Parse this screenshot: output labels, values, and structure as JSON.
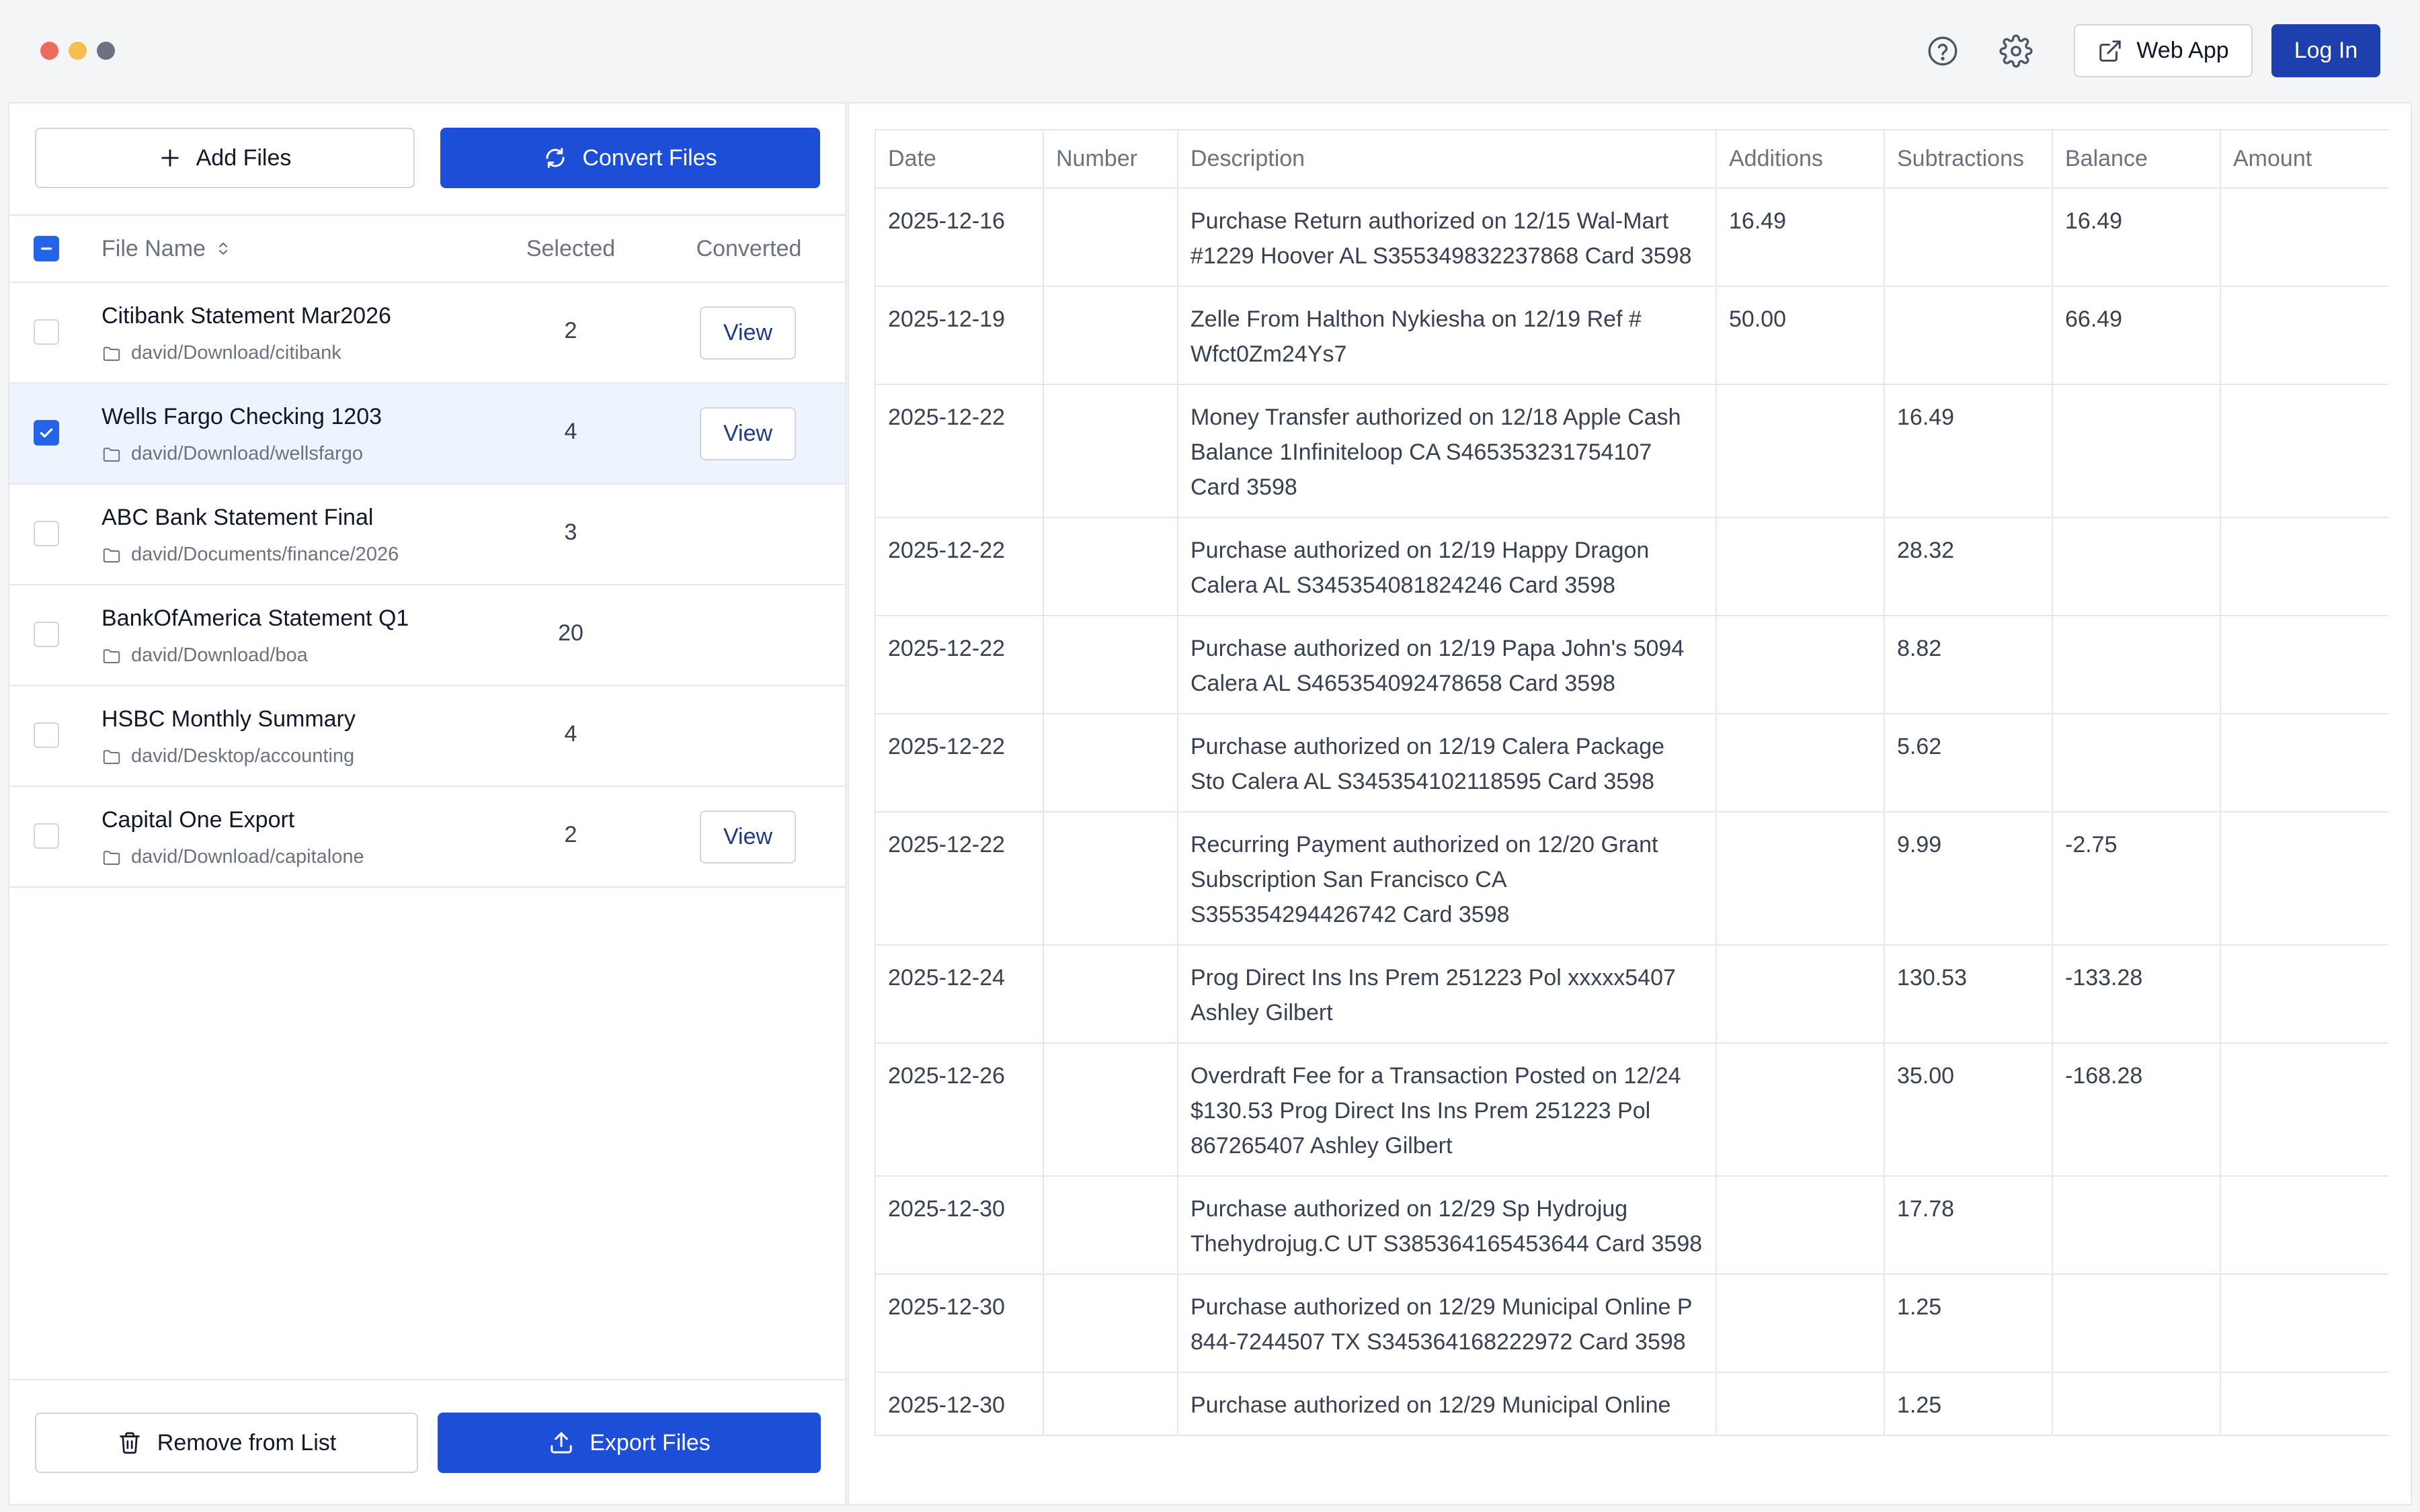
{
  "titlebar": {
    "web_app_label": "Web App",
    "login_label": "Log In"
  },
  "left": {
    "add_files_label": "Add Files",
    "convert_files_label": "Convert Files",
    "header": {
      "file_name": "File Name",
      "selected": "Selected",
      "converted": "Converted"
    },
    "files": [
      {
        "name": "Citibank Statement Mar2026",
        "path": "david/Download/citibank",
        "selected_count": "2",
        "checked": false,
        "view_label": "View"
      },
      {
        "name": "Wells Fargo Checking 1203",
        "path": "david/Download/wellsfargo",
        "selected_count": "4",
        "checked": true,
        "view_label": "View"
      },
      {
        "name": "ABC Bank Statement Final",
        "path": "david/Documents/finance/2026",
        "selected_count": "3",
        "checked": false,
        "view_label": ""
      },
      {
        "name": "BankOfAmerica Statement Q1",
        "path": "david/Download/boa",
        "selected_count": "20",
        "checked": false,
        "view_label": ""
      },
      {
        "name": "HSBC Monthly Summary",
        "path": "david/Desktop/accounting",
        "selected_count": "4",
        "checked": false,
        "view_label": ""
      },
      {
        "name": "Capital One Export",
        "path": "david/Download/capitalone",
        "selected_count": "2",
        "checked": false,
        "view_label": "View"
      }
    ],
    "remove_label": "Remove from List",
    "export_label": "Export Files"
  },
  "table": {
    "columns": [
      "Date",
      "Number",
      "Description",
      "Additions",
      "Subtractions",
      "Balance",
      "Amount"
    ],
    "rows": [
      {
        "date": "2025-12-16",
        "number": "",
        "description": "Purchase Return authorized on 12/15 Wal-Mart #1229 Hoover AL S355349832237868 Card 3598",
        "additions": "16.49",
        "subtractions": "",
        "balance": "16.49",
        "amount": ""
      },
      {
        "date": "2025-12-19",
        "number": "",
        "description": "Zelle From Halthon Nykiesha on 12/19 Ref # Wfct0Zm24Ys7",
        "additions": "50.00",
        "subtractions": "",
        "balance": "66.49",
        "amount": ""
      },
      {
        "date": "2025-12-22",
        "number": "",
        "description": "Money Transfer authorized on 12/18 Apple Cash Balance 1Infiniteloop CA S465353231754107 Card 3598",
        "additions": "",
        "subtractions": "16.49",
        "balance": "",
        "amount": ""
      },
      {
        "date": "2025-12-22",
        "number": "",
        "description": "Purchase authorized on 12/19 Happy Dragon Calera AL S345354081824246 Card 3598",
        "additions": "",
        "subtractions": "28.32",
        "balance": "",
        "amount": ""
      },
      {
        "date": "2025-12-22",
        "number": "",
        "description": "Purchase authorized on 12/19 Papa John's 5094 Calera AL S465354092478658 Card 3598",
        "additions": "",
        "subtractions": "8.82",
        "balance": "",
        "amount": ""
      },
      {
        "date": "2025-12-22",
        "number": "",
        "description": "Purchase authorized on 12/19 Calera Package Sto Calera AL S345354102118595 Card 3598",
        "additions": "",
        "subtractions": "5.62",
        "balance": "",
        "amount": ""
      },
      {
        "date": "2025-12-22",
        "number": "",
        "description": "Recurring Payment authorized on 12/20 Grant Subscription San Francisco CA S355354294426742 Card 3598",
        "additions": "",
        "subtractions": "9.99",
        "balance": "-2.75",
        "amount": ""
      },
      {
        "date": "2025-12-24",
        "number": "",
        "description": "Prog Direct Ins Ins Prem 251223 Pol xxxxx5407 Ashley Gilbert",
        "additions": "",
        "subtractions": "130.53",
        "balance": "-133.28",
        "amount": ""
      },
      {
        "date": "2025-12-26",
        "number": "",
        "description": "Overdraft Fee for a Transaction Posted on 12/24 $130.53 Prog Direct Ins Ins Prem 251223 Pol 867265407 Ashley Gilbert",
        "additions": "",
        "subtractions": "35.00",
        "balance": "-168.28",
        "amount": ""
      },
      {
        "date": "2025-12-30",
        "number": "",
        "description": "Purchase authorized on 12/29 Sp Hydrojug Thehydrojug.C UT S385364165453644 Card 3598",
        "additions": "",
        "subtractions": "17.78",
        "balance": "",
        "amount": ""
      },
      {
        "date": "2025-12-30",
        "number": "",
        "description": "Purchase authorized on 12/29 Municipal Online P 844-7244507 TX S345364168222972 Card 3598",
        "additions": "",
        "subtractions": "1.25",
        "balance": "",
        "amount": ""
      },
      {
        "date": "2025-12-30",
        "number": "",
        "description": "Purchase authorized on 12/29 Municipal Online",
        "additions": "",
        "subtractions": "1.25",
        "balance": "",
        "amount": ""
      }
    ]
  },
  "colors": {
    "primary": "#1d4ed8",
    "login": "#1e40af",
    "selected_row": "#eef4fd",
    "border": "#e5e7eb"
  },
  "icons": [
    "help-circle-icon",
    "gear-icon",
    "external-link-icon",
    "plus-icon",
    "refresh-icon",
    "sort-icon",
    "folder-icon",
    "trash-icon",
    "upload-icon",
    "check-icon",
    "minus-icon"
  ]
}
